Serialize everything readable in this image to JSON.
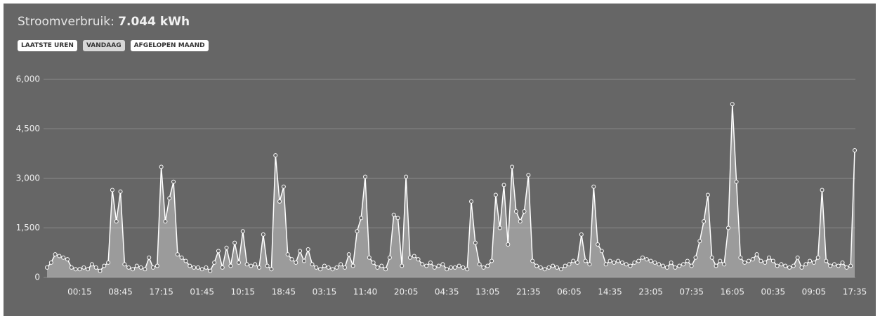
{
  "header": {
    "label": "Stroomverbruik:",
    "value": "7.044 kWh"
  },
  "buttons": [
    "LAATSTE UREN",
    "VANDAAG",
    "AFGELOPEN MAAND"
  ],
  "chart_data": {
    "type": "line",
    "color": "#ffffff",
    "grid": true,
    "ylim": [
      0,
      6000
    ],
    "yticks": [
      0,
      {
        "value": 1500,
        "label": "1,500"
      },
      {
        "value": 3000,
        "label": "3,000"
      },
      {
        "value": 4500,
        "label": "4,500"
      },
      {
        "value": 6000,
        "label": "6,000"
      }
    ],
    "categories": [
      null,
      null,
      null,
      null,
      null,
      null,
      null,
      null,
      "00:15",
      null,
      null,
      null,
      null,
      null,
      null,
      null,
      null,
      null,
      "08:45",
      null,
      null,
      null,
      null,
      null,
      null,
      null,
      null,
      null,
      "17:15",
      null,
      null,
      null,
      null,
      null,
      null,
      null,
      null,
      null,
      "01:45",
      null,
      null,
      null,
      null,
      null,
      null,
      null,
      null,
      null,
      "10:15",
      null,
      null,
      null,
      null,
      null,
      null,
      null,
      null,
      null,
      "18:45",
      null,
      null,
      null,
      null,
      null,
      null,
      null,
      null,
      null,
      "03:15",
      null,
      null,
      null,
      null,
      null,
      null,
      null,
      null,
      null,
      "11:40",
      null,
      null,
      null,
      null,
      null,
      null,
      null,
      null,
      null,
      "20:05",
      null,
      null,
      null,
      null,
      null,
      null,
      null,
      null,
      null,
      "04:35",
      null,
      null,
      null,
      null,
      null,
      null,
      null,
      null,
      null,
      "13:05",
      null,
      null,
      null,
      null,
      null,
      null,
      null,
      null,
      null,
      "21:35",
      null,
      null,
      null,
      null,
      null,
      null,
      null,
      null,
      null,
      "06:05",
      null,
      null,
      null,
      null,
      null,
      null,
      null,
      null,
      null,
      "14:35",
      null,
      null,
      null,
      null,
      null,
      null,
      null,
      null,
      null,
      "23:05",
      null,
      null,
      null,
      null,
      null,
      null,
      null,
      null,
      null,
      "07:35",
      null,
      null,
      null,
      null,
      null,
      null,
      null,
      null,
      null,
      "16:05",
      null,
      null,
      null,
      null,
      null,
      null,
      null,
      null,
      null,
      "00:35",
      null,
      null,
      null,
      null,
      null,
      null,
      null,
      null,
      null,
      "09:05",
      null,
      null,
      null,
      null,
      null,
      null,
      null,
      null,
      null,
      "17:35"
    ],
    "values": [
      300,
      450,
      700,
      650,
      600,
      550,
      300,
      250,
      250,
      300,
      250,
      400,
      300,
      200,
      350,
      450,
      2650,
      1700,
      2600,
      400,
      300,
      250,
      350,
      300,
      250,
      600,
      300,
      350,
      3350,
      1700,
      2400,
      2900,
      700,
      600,
      500,
      350,
      300,
      300,
      250,
      300,
      200,
      450,
      800,
      300,
      900,
      350,
      1050,
      450,
      1400,
      400,
      350,
      400,
      300,
      1300,
      350,
      250,
      3700,
      2300,
      2750,
      700,
      550,
      450,
      800,
      500,
      850,
      400,
      300,
      250,
      350,
      300,
      250,
      300,
      400,
      300,
      700,
      350,
      1400,
      1800,
      3050,
      600,
      450,
      300,
      350,
      250,
      600,
      1900,
      1800,
      350,
      3050,
      600,
      650,
      550,
      400,
      350,
      450,
      300,
      350,
      400,
      250,
      300,
      300,
      350,
      300,
      250,
      2300,
      1050,
      400,
      300,
      350,
      500,
      2500,
      1500,
      2800,
      1000,
      3350,
      2000,
      1700,
      2000,
      3100,
      500,
      350,
      300,
      250,
      300,
      350,
      300,
      250,
      350,
      400,
      500,
      450,
      1300,
      500,
      400,
      2750,
      1000,
      800,
      400,
      500,
      450,
      500,
      450,
      400,
      350,
      450,
      500,
      600,
      550,
      500,
      450,
      400,
      350,
      300,
      450,
      300,
      350,
      400,
      500,
      350,
      600,
      1100,
      1700,
      2500,
      600,
      350,
      500,
      400,
      1500,
      5250,
      2900,
      600,
      450,
      500,
      550,
      700,
      500,
      450,
      600,
      500,
      350,
      400,
      350,
      300,
      350,
      600,
      300,
      400,
      500,
      450,
      600,
      2650,
      500,
      350,
      400,
      350,
      450,
      300,
      350,
      3850
    ]
  }
}
